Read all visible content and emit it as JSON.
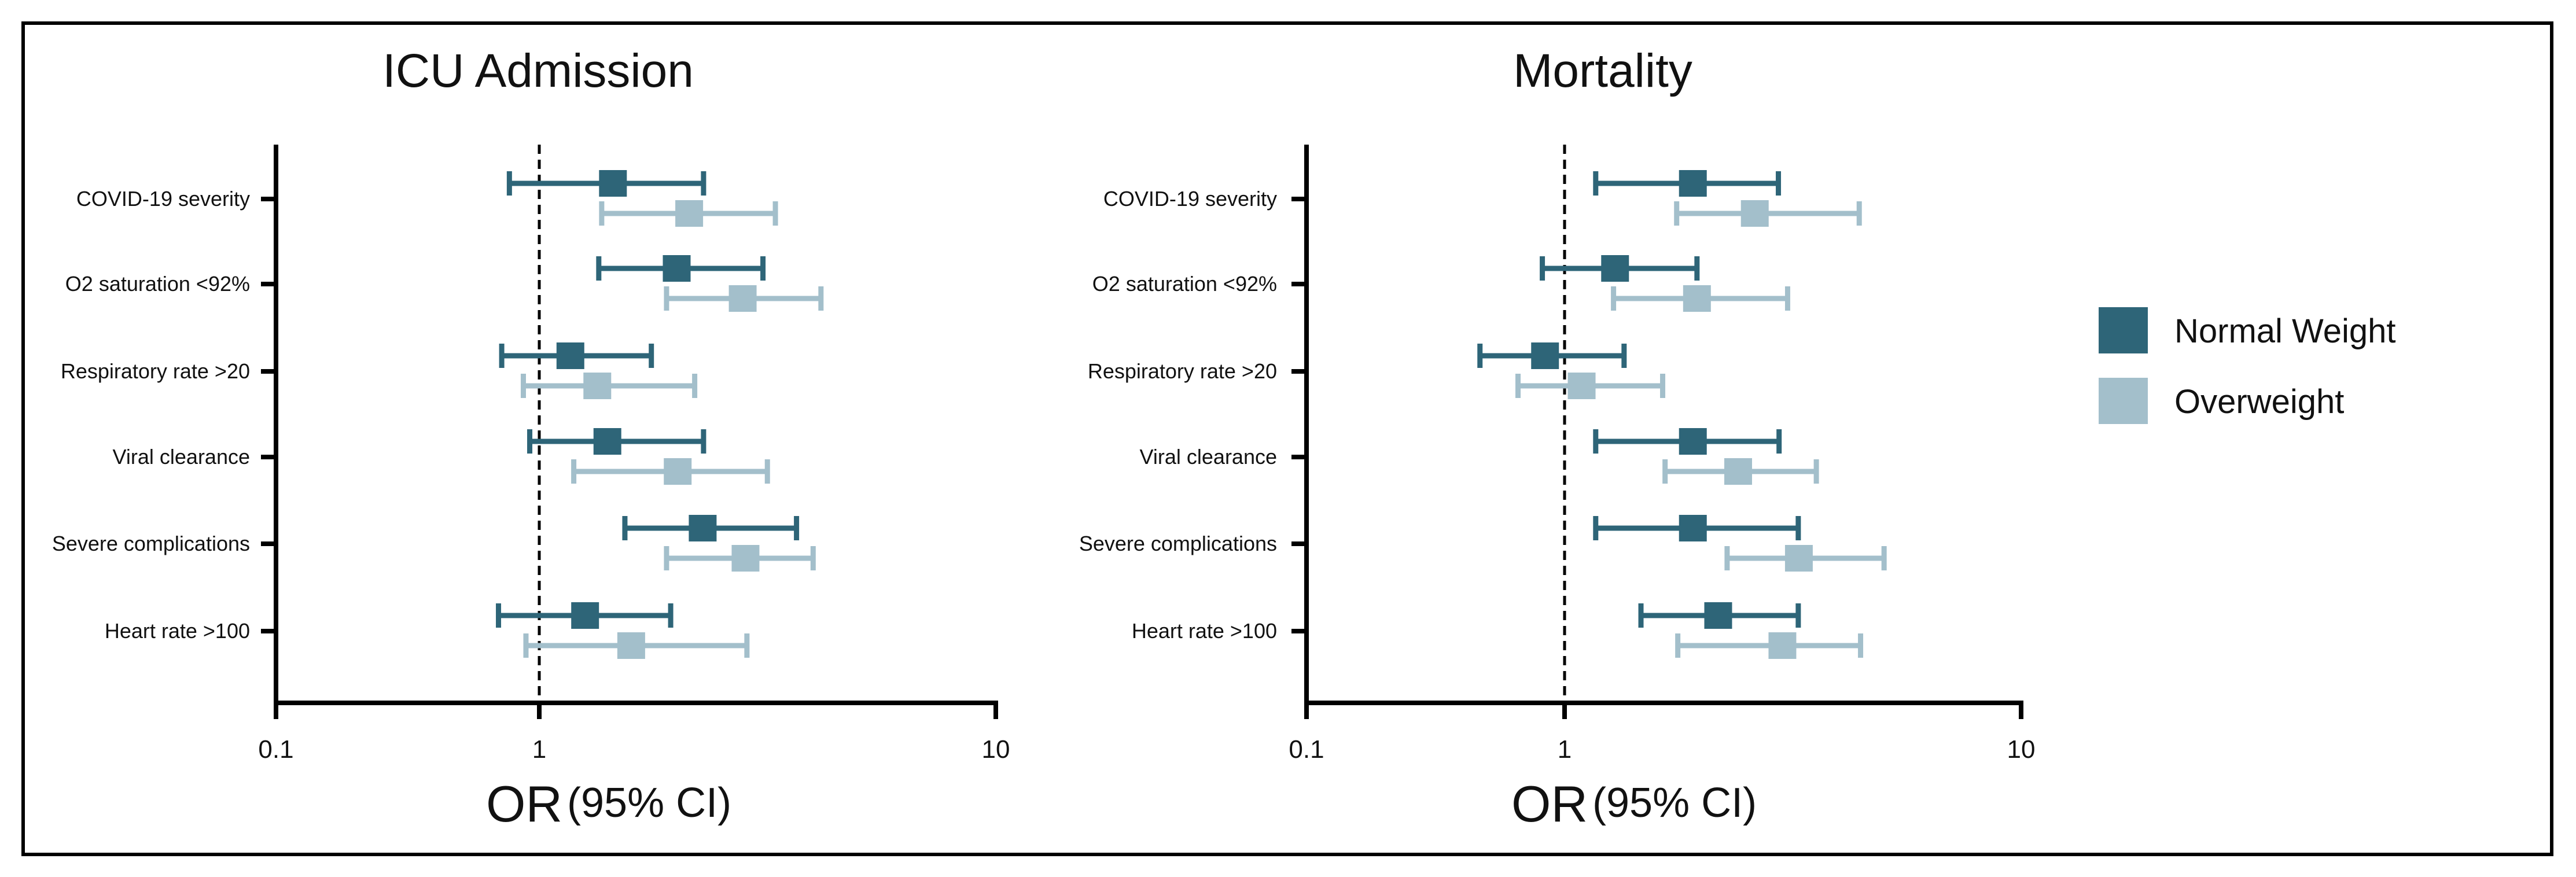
{
  "colors": {
    "normal": "#2e6578",
    "overweight": "#a3bfcb"
  },
  "chart_data": [
    {
      "type": "forest",
      "title": "ICU Admission",
      "xlabel_main": "OR",
      "xlabel_sub": "(95% CI)",
      "xscale": "log",
      "xlim": [
        0.1,
        10
      ],
      "xticks": [
        "0.1",
        "1",
        "10"
      ],
      "reference_line": 1,
      "categories": [
        "COVID-19 severity",
        "O2 saturation <92%",
        "Respiratory rate >20",
        "Viral clearance",
        "Severe complications",
        "Heart rate >100"
      ],
      "series": [
        {
          "name": "Normal Weight",
          "or": [
            1.45,
            2.0,
            1.17,
            1.41,
            2.28,
            1.26
          ],
          "lower": [
            0.77,
            1.35,
            0.72,
            0.92,
            1.54,
            0.7
          ],
          "upper": [
            2.29,
            3.09,
            1.76,
            2.29,
            3.66,
            1.94
          ]
        },
        {
          "name": "Overweight",
          "or": [
            2.13,
            2.79,
            1.34,
            2.01,
            2.83,
            1.59
          ],
          "lower": [
            1.37,
            1.9,
            0.87,
            1.19,
            1.9,
            0.89
          ],
          "upper": [
            3.29,
            4.14,
            2.19,
            3.16,
            3.98,
            2.85
          ]
        }
      ]
    },
    {
      "type": "forest",
      "title": "Mortality",
      "xlabel_main": "OR",
      "xlabel_sub": "(95% CI)",
      "xscale": "log",
      "xlim": [
        0.1,
        10
      ],
      "xticks": [
        "0.1",
        "1",
        "10"
      ],
      "reference_line": 1,
      "categories": [
        "COVID-19 severity",
        "O2 saturation <92%",
        "Respiratory rate >20",
        "Viral clearance",
        "Severe complications",
        "Heart rate >100"
      ],
      "series": [
        {
          "name": "Normal Weight",
          "or": [
            1.91,
            1.29,
            0.84,
            1.91,
            1.91,
            2.17
          ],
          "lower": [
            1.17,
            0.82,
            0.47,
            1.17,
            1.17,
            1.47
          ],
          "upper": [
            2.94,
            1.95,
            1.35,
            2.95,
            3.25,
            3.25
          ]
        },
        {
          "name": "Overweight",
          "or": [
            2.61,
            1.95,
            1.09,
            2.4,
            3.26,
            3.0
          ],
          "lower": [
            1.76,
            1.28,
            0.66,
            1.66,
            2.27,
            1.77
          ],
          "upper": [
            4.42,
            3.08,
            1.64,
            3.56,
            5.01,
            4.45
          ]
        }
      ]
    }
  ],
  "legend": {
    "position": "right",
    "items": [
      "Normal Weight",
      "Overweight"
    ]
  }
}
